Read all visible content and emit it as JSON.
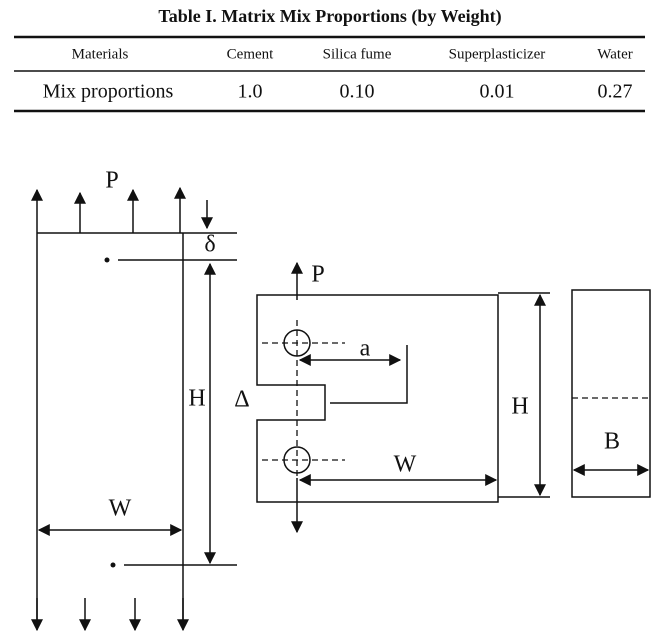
{
  "table": {
    "title": "Table I.   Matrix Mix Proportions (by Weight)",
    "header": [
      "Materials",
      "Cement",
      "Silica fume",
      "Superplasticizer",
      "Water"
    ],
    "rows": [
      [
        "Mix proportions",
        "1.0",
        "0.10",
        "0.01",
        "0.27"
      ]
    ]
  },
  "figure": {
    "left": {
      "load": "P",
      "displacement": "δ",
      "height": "H",
      "width": "W"
    },
    "middle": {
      "load": "P",
      "crack": "a",
      "opening": "Δ",
      "width": "W",
      "height": "H"
    },
    "right": {
      "thickness": "B"
    }
  }
}
